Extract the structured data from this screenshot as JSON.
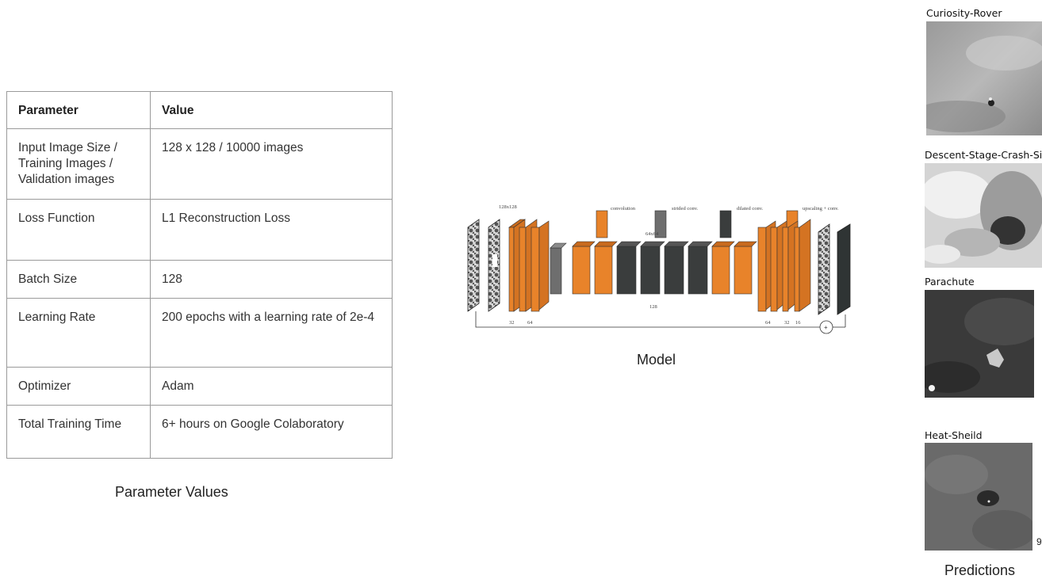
{
  "table": {
    "headers": [
      "Parameter",
      "Value"
    ],
    "rows": [
      {
        "param": "Input Image Size / Training Images / Validation images",
        "value": "128 x 128 / 10000 images"
      },
      {
        "param": "Loss Function",
        "value": "L1 Reconstruction Loss"
      },
      {
        "param": "Batch Size",
        "value": "128"
      },
      {
        "param": "Learning Rate",
        "value": "200 epochs with a learning rate of 2e-4"
      },
      {
        "param": "Optimizer",
        "value": "Adam"
      },
      {
        "param": "Total Training Time",
        "value": "6+ hours on Google Colaboratory"
      }
    ],
    "caption": "Parameter Values"
  },
  "model": {
    "caption": "Model",
    "legend": {
      "convolution": "convolution",
      "strided": "strided conv.",
      "dilated": "dilated conv.",
      "upscaling": "upscaling + conv."
    },
    "labels": {
      "input_size": "128x128",
      "mid_size": "64x64",
      "ch_32_left": "32",
      "ch_64_left": "64",
      "ch_128": "128",
      "ch_64_right": "64",
      "ch_32_right": "32",
      "ch_16_right": "16"
    },
    "colors": {
      "orange": "#e8832a",
      "gray": "#6e6e6e",
      "dark": "#3a3d3d"
    }
  },
  "predictions": {
    "caption": "Predictions",
    "items": [
      {
        "label": "Curiosity-Rover"
      },
      {
        "label": "Descent-Stage-Crash-Sit"
      },
      {
        "label": "Parachute"
      },
      {
        "label": "Heat-Sheild"
      }
    ],
    "page_number": "9"
  }
}
